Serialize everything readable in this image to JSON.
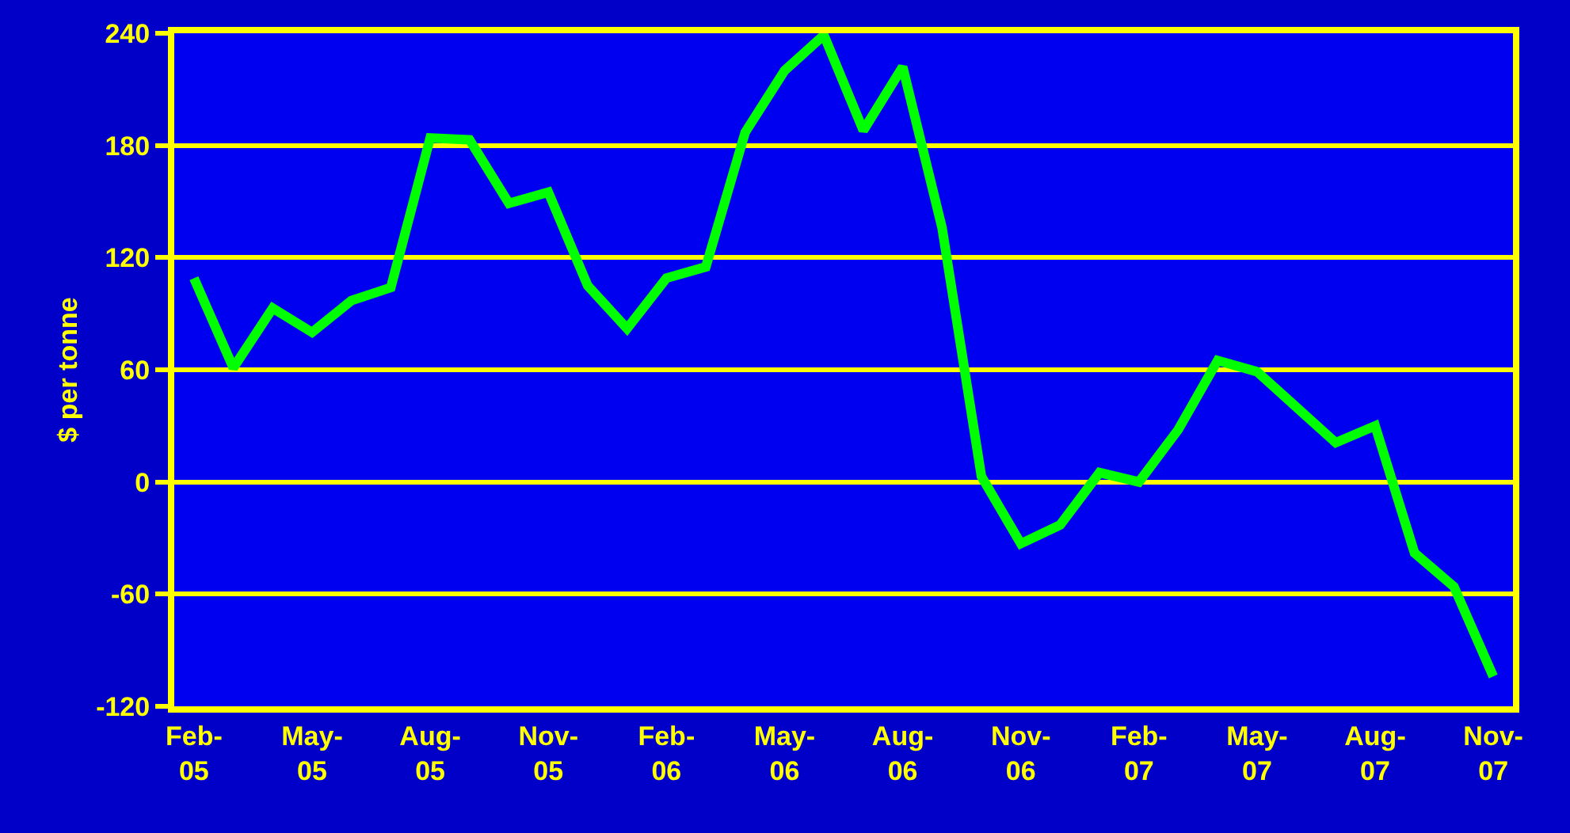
{
  "chart_data": {
    "type": "line",
    "ylabel": "$ per tonne",
    "categories": [
      "Feb-\n05",
      null,
      null,
      "May-\n05",
      null,
      null,
      "Aug-\n05",
      null,
      null,
      "Nov-\n05",
      null,
      null,
      "Feb-\n06",
      null,
      null,
      "May-\n06",
      null,
      null,
      "Aug-\n06",
      null,
      null,
      "Nov-\n06",
      null,
      null,
      "Feb-\n07",
      null,
      null,
      "May-\n07",
      null,
      null,
      "Aug-\n07",
      null,
      null,
      "Nov-\n07"
    ],
    "series": [
      {
        "color": "#00ff00",
        "values": [
          109,
          61,
          93,
          80,
          97,
          104,
          184,
          183,
          149,
          155,
          105,
          82,
          109,
          115,
          187,
          220,
          239,
          188,
          222,
          136,
          3,
          -33,
          -23,
          5,
          0,
          28,
          65,
          59,
          40,
          21,
          30,
          -38,
          -56,
          -104
        ]
      }
    ],
    "ylim": [
      -120,
      240
    ],
    "yticks": [
      -120,
      -60,
      0,
      60,
      120,
      180,
      240
    ],
    "grid": "y",
    "marker": "none",
    "line_style": "solid"
  }
}
